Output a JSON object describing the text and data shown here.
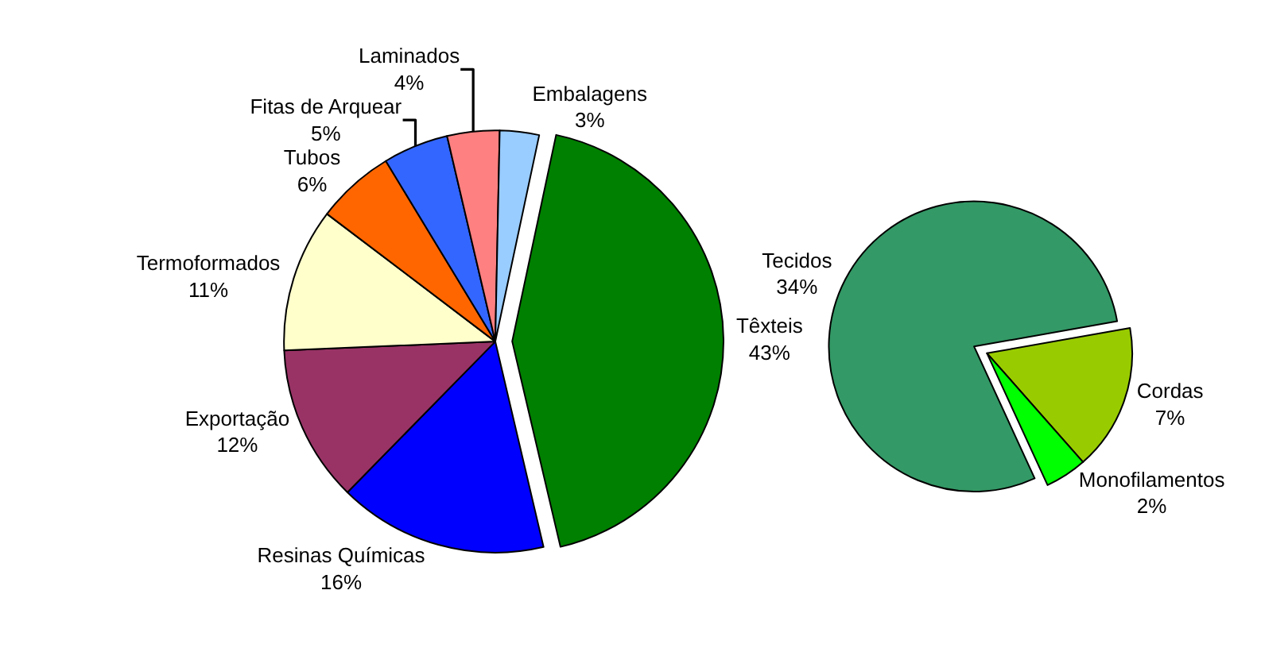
{
  "chart_data": [
    {
      "type": "pie",
      "categories": [
        "Têxteis",
        "Resinas Químicas",
        "Exportação",
        "Termoformados",
        "Tubos",
        "Fitas de Arquear",
        "Laminados",
        "Embalagens"
      ],
      "values": [
        43,
        16,
        12,
        11,
        6,
        5,
        4,
        3
      ],
      "value_labels": [
        "43%",
        "16%",
        "12%",
        "11%",
        "6%",
        "5%",
        "4%",
        "3%"
      ],
      "colors": [
        "#008000",
        "#0000ff",
        "#993366",
        "#ffffcc",
        "#ff6600",
        "#3366ff",
        "#ff8080",
        "#99ccff"
      ],
      "legend": false
    },
    {
      "type": "pie",
      "categories": [
        "Cordas",
        "Monofilamentos",
        "Tecidos"
      ],
      "values": [
        7,
        2,
        34
      ],
      "value_labels": [
        "7%",
        "2%",
        "34%"
      ],
      "colors": [
        "#99cc00",
        "#00ff00",
        "#339966"
      ],
      "legend": false
    }
  ]
}
